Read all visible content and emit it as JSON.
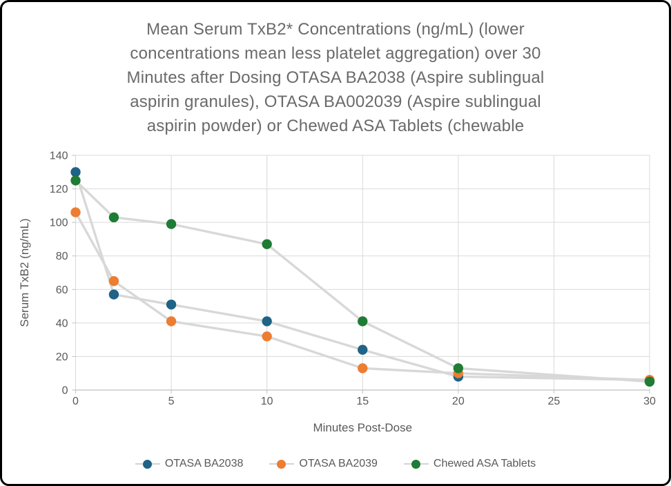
{
  "frame": {
    "background_color": "#ffffff",
    "border_color": "#000000"
  },
  "chart_data": {
    "type": "line",
    "title": "Mean Serum TxB2* Concentrations (ng/mL) (lower concentrations mean less platelet aggregation) over 30 Minutes after Dosing OTASA BA2038 (Aspire sublingual aspirin granules), OTASA BA002039 (Aspire sublingual aspirin powder) or Chewed ASA Tablets (chewable",
    "title_lines": [
      "Mean Serum TxB2* Concentrations (ng/mL) (lower",
      "concentrations mean less platelet aggregation) over 30",
      "Minutes after Dosing OTASA BA2038 (Aspire sublingual",
      "aspirin granules), OTASA BA002039 (Aspire sublingual",
      "aspirin powder) or Chewed ASA Tablets (chewable"
    ],
    "xlabel": "Minutes Post-Dose",
    "ylabel": "Serum TxB2 (ng/mL)",
    "x": [
      0,
      2,
      5,
      10,
      15,
      20,
      30
    ],
    "x_ticks": [
      0,
      5,
      10,
      15,
      20,
      25,
      30
    ],
    "y_ticks": [
      0,
      20,
      40,
      60,
      80,
      100,
      120,
      140
    ],
    "xlim": [
      0,
      30
    ],
    "ylim": [
      0,
      140
    ],
    "grid": true,
    "legend_position": "bottom",
    "marker_style": "circle",
    "series": [
      {
        "name": "OTASA BA2038",
        "color": "#1F6386",
        "values": [
          130,
          57,
          51,
          41,
          24,
          8,
          6
        ]
      },
      {
        "name": "OTASA BA2039",
        "color": "#ED7D31",
        "values": [
          106,
          65,
          41,
          32,
          13,
          10,
          6
        ]
      },
      {
        "name": "Chewed ASA Tablets",
        "color": "#1E7C35",
        "values": [
          125,
          103,
          99,
          87,
          41,
          13,
          5
        ]
      }
    ],
    "style": {
      "connector_line_color": "#d8d8d8",
      "gridline_color": "#d9d9d9",
      "axis_line_color": "#bfbfbf",
      "axis_text_color": "#595959",
      "title_color": "#6a6a6a"
    }
  }
}
